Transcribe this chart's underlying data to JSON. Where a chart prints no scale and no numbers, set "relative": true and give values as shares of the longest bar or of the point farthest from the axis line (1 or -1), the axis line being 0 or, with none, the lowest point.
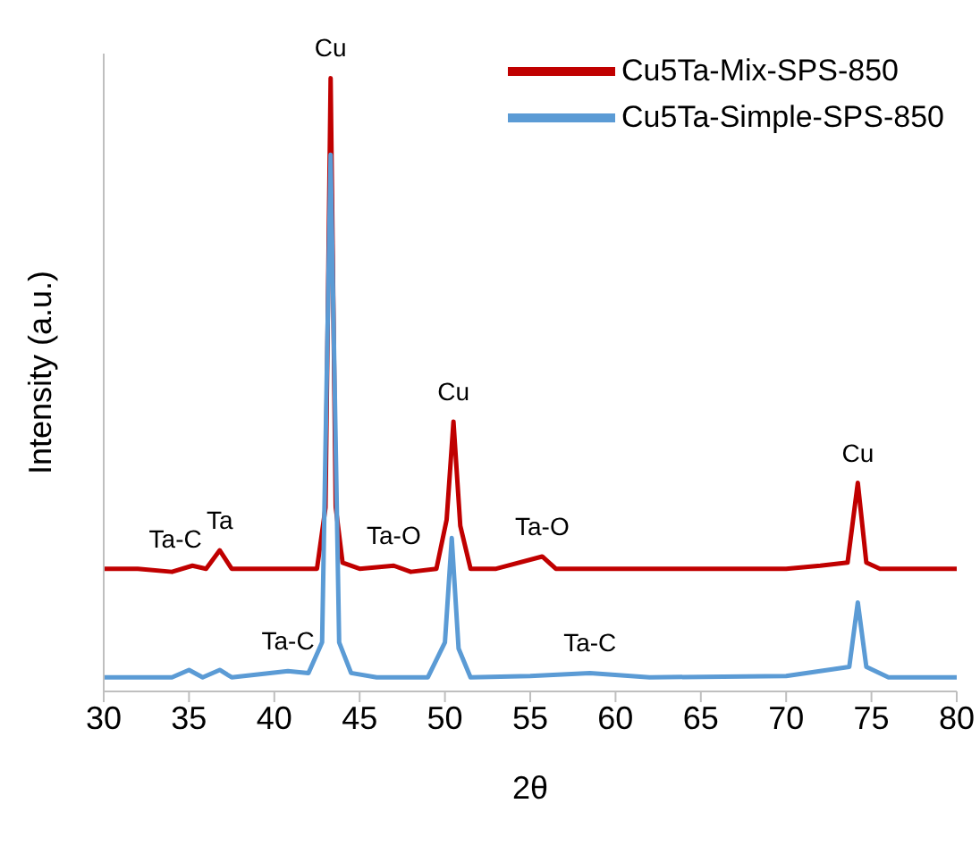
{
  "chart_data": {
    "type": "line",
    "xlabel": "2θ",
    "ylabel": "Intensity (a.u.)",
    "relative": true,
    "xlim": [
      30,
      80
    ],
    "xticks": [
      30,
      35,
      40,
      45,
      50,
      55,
      60,
      65,
      70,
      75,
      80
    ],
    "legend": "top right",
    "marker": "none",
    "line_style": "solid",
    "grid": false,
    "series": [
      {
        "name": "Cu5Ta-Mix-SPS-850",
        "color": "#c00000",
        "x": [
          30,
          32,
          34,
          35.2,
          36,
          36.8,
          37.5,
          39,
          41,
          42.5,
          43.0,
          43.3,
          43.6,
          44.0,
          45,
          47,
          48,
          49.5,
          50.1,
          50.5,
          50.9,
          51.5,
          53,
          55.7,
          56.5,
          60,
          65,
          70,
          72,
          73.6,
          74.2,
          74.7,
          75.5,
          78,
          80
        ],
        "values": [
          0.2,
          0.2,
          0.195,
          0.205,
          0.2,
          0.23,
          0.2,
          0.2,
          0.2,
          0.2,
          0.3,
          1.0,
          0.3,
          0.21,
          0.2,
          0.205,
          0.195,
          0.2,
          0.28,
          0.44,
          0.27,
          0.2,
          0.2,
          0.22,
          0.2,
          0.2,
          0.2,
          0.2,
          0.205,
          0.21,
          0.34,
          0.21,
          0.2,
          0.2,
          0.2
        ]
      },
      {
        "name": "Cu5Ta-Simple-SPS-850",
        "color": "#5b9bd5",
        "x": [
          30,
          34,
          35,
          35.8,
          36.8,
          37.5,
          40.8,
          42,
          42.8,
          43.3,
          43.8,
          44.5,
          46,
          49,
          50.0,
          50.4,
          50.8,
          51.5,
          55,
          58.5,
          62,
          70,
          73.7,
          74.2,
          74.7,
          76,
          80
        ],
        "values": [
          0.023,
          0.023,
          0.035,
          0.023,
          0.035,
          0.023,
          0.033,
          0.03,
          0.08,
          0.875,
          0.08,
          0.03,
          0.023,
          0.023,
          0.08,
          0.25,
          0.07,
          0.023,
          0.025,
          0.03,
          0.023,
          0.025,
          0.04,
          0.145,
          0.04,
          0.023,
          0.023
        ]
      }
    ],
    "annotations": [
      {
        "text": "Cu",
        "x": 43.3,
        "y": 1.0
      },
      {
        "text": "Cu",
        "x": 50.5,
        "y": 0.44
      },
      {
        "text": "Cu",
        "x": 74.2,
        "y": 0.34
      },
      {
        "text": "Ta-C",
        "x": 34.2,
        "y": 0.2
      },
      {
        "text": "Ta",
        "x": 36.8,
        "y": 0.23
      },
      {
        "text": "Ta-O",
        "x": 47,
        "y": 0.205
      },
      {
        "text": "Ta-O",
        "x": 55.7,
        "y": 0.22
      },
      {
        "text": "Ta-C",
        "x": 40.8,
        "y": 0.033
      },
      {
        "text": "Ta-C",
        "x": 58.5,
        "y": 0.03
      }
    ]
  }
}
